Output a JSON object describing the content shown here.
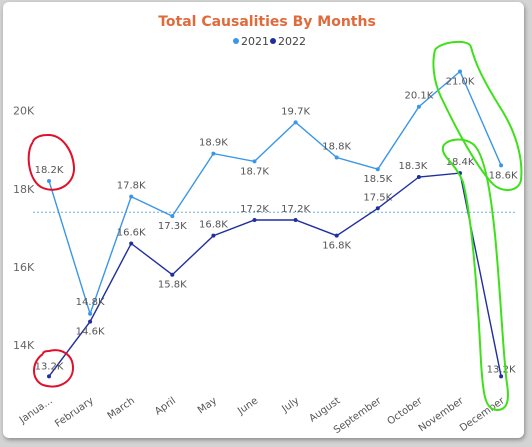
{
  "chart_data": {
    "type": "line",
    "title": "Total Causalities By Months",
    "categories": [
      "Janua...",
      "February",
      "March",
      "April",
      "May",
      "June",
      "July",
      "August",
      "September",
      "October",
      "November",
      "December"
    ],
    "series": [
      {
        "name": "2021",
        "color": "#3b96e8",
        "values": [
          18200,
          14800,
          17800,
          17300,
          18900,
          18700,
          19700,
          18800,
          18500,
          20100,
          21000,
          18600
        ],
        "labels": [
          "18.2K",
          "14.8K",
          "17.8K",
          "17.3K",
          "18.9K",
          "18.7K",
          "19.7K",
          "18.8K",
          "18.5K",
          "20.1K",
          "21.0K",
          "18.6K"
        ]
      },
      {
        "name": "2022",
        "color": "#1f2f9e",
        "values": [
          13200,
          14600,
          16600,
          15800,
          16800,
          17200,
          17200,
          16800,
          17500,
          18300,
          18400,
          13200
        ],
        "labels": [
          "13.2K",
          "14.6K",
          "16.6K",
          "15.8K",
          "16.8K",
          "17.2K",
          "17.2K",
          "16.8K",
          "17.5K",
          "18.3K",
          "18.4K",
          "13.2K"
        ]
      }
    ],
    "yticks": [
      14000,
      16000,
      18000,
      20000
    ],
    "ytick_labels": [
      "14K",
      "16K",
      "18K",
      "20K"
    ],
    "ylim": [
      12850,
      21500
    ],
    "average_line": 17400,
    "grid": false,
    "legend_position": "top-center",
    "annotations": [
      {
        "shape": "red-circle",
        "target": "January",
        "color": "#e0102a"
      },
      {
        "shape": "green-outline",
        "target": "November-December 2021",
        "color": "#3ee01a"
      },
      {
        "shape": "green-outline",
        "target": "November-December 2022",
        "color": "#3ee01a"
      }
    ]
  }
}
